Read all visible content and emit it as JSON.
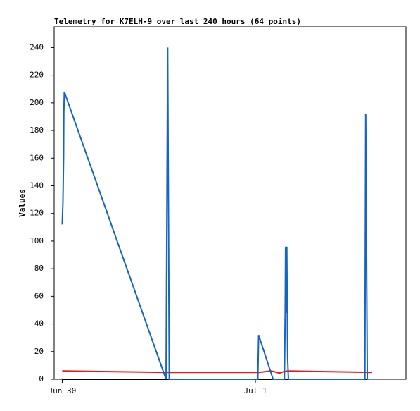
{
  "chart_data": {
    "type": "line",
    "title": "Telemetry for K7ELH-9 over last 240 hours (64 points)",
    "y_label": "Values",
    "xlim": [
      -1,
      42.7
    ],
    "xticks": [
      {
        "value": 0,
        "label": "Jun 30"
      },
      {
        "value": 24,
        "label": "Jul 1"
      }
    ],
    "ylim": [
      0,
      255
    ],
    "yticks": [
      0,
      20,
      40,
      60,
      80,
      100,
      120,
      140,
      160,
      180,
      200,
      220,
      240
    ],
    "series": [
      {
        "color": "#000000",
        "x": [
          0,
          37.9
        ],
        "values": [
          0,
          0
        ]
      },
      {
        "color": "#e41a1c",
        "x": [
          0,
          13,
          24.4,
          26,
          27,
          27.5,
          28,
          38.5
        ],
        "values": [
          6,
          5,
          5,
          6,
          4.5,
          5.5,
          6,
          5
        ]
      },
      {
        "color": "#1565c0",
        "x": [
          0,
          0.09,
          0.17,
          0.2,
          0.26,
          12.9,
          13.0,
          13.1,
          13.2,
          13.3,
          24.3,
          24.35,
          24.4,
          26.2,
          27.6,
          27.7,
          27.75,
          27.8,
          27.85,
          27.9,
          28.0,
          28.1,
          37.6,
          37.7,
          37.8,
          37.9
        ],
        "values": [
          112,
          128,
          160,
          192,
          208,
          0,
          120,
          240,
          120,
          0,
          0,
          16,
          32,
          0,
          0,
          48,
          96,
          80,
          48,
          96,
          16,
          0,
          0,
          192,
          96,
          0
        ]
      }
    ]
  }
}
